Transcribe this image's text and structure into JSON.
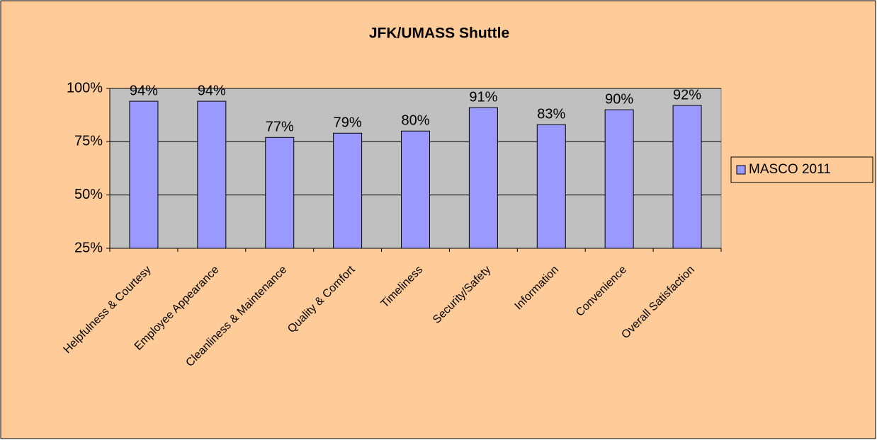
{
  "chart_data": {
    "type": "bar",
    "title": "JFK/UMASS Shuttle",
    "categories": [
      "Helpfulness & Courtesy",
      "Employee Appearance",
      "Cleanliness & Maintenance",
      "Quality & Comfort",
      "Timeliness",
      "Security/Safety",
      "Information",
      "Convenience",
      "Overall Satisfaction"
    ],
    "series": [
      {
        "name": "MASCO 2011",
        "color": "#9999ff",
        "values": [
          94,
          94,
          77,
          79,
          80,
          91,
          83,
          90,
          92
        ],
        "value_labels": [
          "94%",
          "94%",
          "77%",
          "79%",
          "80%",
          "91%",
          "83%",
          "90%",
          "92%"
        ]
      }
    ],
    "ylim": [
      25,
      100
    ],
    "yticks": [
      {
        "value": 25,
        "label": "25%"
      },
      {
        "value": 50,
        "label": "50%"
      },
      {
        "value": 75,
        "label": "75%"
      },
      {
        "value": 100,
        "label": "100%"
      }
    ],
    "grid": true,
    "legend": "right"
  }
}
